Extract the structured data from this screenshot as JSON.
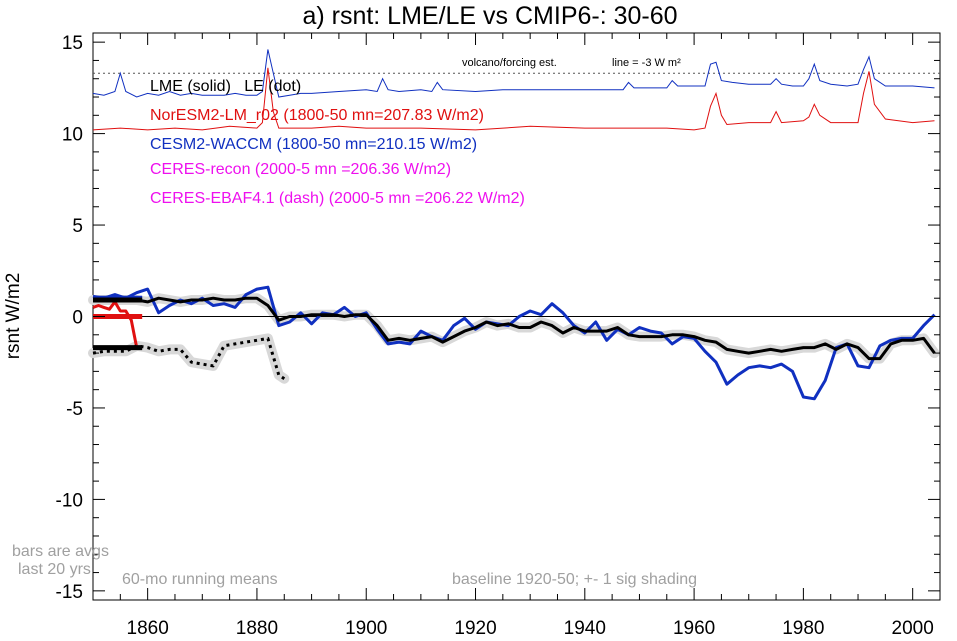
{
  "chart_data": {
    "type": "line",
    "title": "a) rsnt: LME/LE vs CMIP6-: 30-60",
    "ylabel": "rsnt W/m2",
    "xlabel": "",
    "xlim": [
      1850,
      2005
    ],
    "ylim": [
      -15.5,
      15.5
    ],
    "x_ticks": [
      1860,
      1880,
      1900,
      1920,
      1940,
      1960,
      1980,
      2000
    ],
    "y_ticks": [
      -15,
      -10,
      -5,
      0,
      5,
      10,
      15
    ],
    "zero_line": 0,
    "reference_line": {
      "y": 13.3,
      "label_left": "volcano/forcing est.",
      "label_right": "line = -3 W m²"
    },
    "legend_entries": [
      {
        "text": "LME (solid)   LE (dot)",
        "color": "#000000"
      },
      {
        "text": "NorESM2-LM_r02 (1800-50 mn=207.83 W/m2)",
        "color": "#e01010"
      },
      {
        "text": "CESM2-WACCM (1800-50 mn=210.15 W/m2)",
        "color": "#1030c0"
      },
      {
        "text": "CERES-recon (2000-5 mn =206.36 W/m2)",
        "color": "#ee10ee"
      },
      {
        "text": "CERES-EBAF4.1 (dash) (2000-5 mn =206.22 W/m2)",
        "color": "#ee10ee"
      }
    ],
    "annotations": {
      "bars_note_1": "bars are avgs",
      "bars_note_2": "last 20 yrs",
      "running_means": "60-mo running means",
      "baseline": "baseline 1920-50; +- 1 sig shading"
    },
    "series": [
      {
        "name": "LME",
        "color": "#000000",
        "style": "solid",
        "x": [
          1850,
          1852,
          1854,
          1856,
          1858,
          1860,
          1862,
          1864,
          1866,
          1868,
          1870,
          1872,
          1874,
          1876,
          1878,
          1880,
          1882,
          1884,
          1886,
          1888,
          1890,
          1892,
          1894,
          1896,
          1898,
          1900,
          1902,
          1904,
          1906,
          1908,
          1910,
          1912,
          1914,
          1916,
          1918,
          1920,
          1922,
          1924,
          1926,
          1928,
          1930,
          1932,
          1934,
          1936,
          1938,
          1940,
          1942,
          1944,
          1946,
          1948,
          1950,
          1952,
          1954,
          1956,
          1958,
          1960,
          1962,
          1964,
          1966,
          1968,
          1970,
          1972,
          1974,
          1976,
          1978,
          1980,
          1982,
          1984,
          1986,
          1988,
          1990,
          1992,
          1994,
          1996,
          1998,
          2000,
          2002,
          2004
        ],
        "values": [
          0.9,
          0.9,
          0.9,
          0.9,
          0.9,
          0.8,
          1.0,
          0.9,
          0.8,
          0.9,
          0.9,
          1.0,
          0.9,
          0.9,
          1.0,
          1.0,
          0.6,
          -0.2,
          0.0,
          0.0,
          0.1,
          0.1,
          0.1,
          0.0,
          0.1,
          0.1,
          -0.5,
          -1.3,
          -1.2,
          -1.3,
          -1.2,
          -1.1,
          -1.4,
          -1.1,
          -0.8,
          -0.6,
          -0.3,
          -0.5,
          -0.4,
          -0.6,
          -0.6,
          -0.3,
          -0.5,
          -0.9,
          -0.6,
          -0.8,
          -0.8,
          -0.8,
          -0.6,
          -1.0,
          -1.1,
          -1.1,
          -1.1,
          -1.0,
          -1.0,
          -1.1,
          -1.3,
          -1.4,
          -1.8,
          -1.9,
          -2.0,
          -1.9,
          -1.8,
          -1.9,
          -1.8,
          -1.7,
          -1.7,
          -1.5,
          -1.8,
          -1.5,
          -1.7,
          -2.3,
          -2.3,
          -1.5,
          -1.3,
          -1.3,
          -1.2,
          -2.0
        ]
      },
      {
        "name": "CESM2-WACCM",
        "color": "#1030c0",
        "style": "solid",
        "x": [
          1850,
          1852,
          1854,
          1856,
          1858,
          1860,
          1862,
          1864,
          1866,
          1868,
          1870,
          1872,
          1874,
          1876,
          1878,
          1880,
          1882,
          1884,
          1886,
          1888,
          1890,
          1892,
          1894,
          1896,
          1898,
          1900,
          1902,
          1904,
          1906,
          1908,
          1910,
          1912,
          1914,
          1916,
          1918,
          1920,
          1922,
          1924,
          1926,
          1928,
          1930,
          1932,
          1934,
          1936,
          1938,
          1940,
          1942,
          1944,
          1946,
          1948,
          1950,
          1952,
          1954,
          1956,
          1958,
          1960,
          1962,
          1964,
          1966,
          1968,
          1970,
          1972,
          1974,
          1976,
          1978,
          1980,
          1982,
          1984,
          1986,
          1988,
          1990,
          1992,
          1994,
          1996,
          1998,
          2000,
          2002,
          2004
        ],
        "values": [
          1.1,
          1.0,
          1.2,
          1.0,
          1.3,
          1.5,
          0.2,
          0.6,
          0.9,
          0.7,
          1.0,
          0.6,
          0.7,
          0.5,
          1.2,
          1.5,
          1.6,
          -0.5,
          -0.3,
          0.2,
          -0.4,
          0.2,
          0.1,
          0.5,
          0.0,
          0.2,
          -0.7,
          -1.5,
          -1.4,
          -1.5,
          -0.8,
          -1.1,
          -1.3,
          -0.5,
          -0.1,
          -0.7,
          -0.3,
          -0.4,
          -0.5,
          0.0,
          0.3,
          0.1,
          0.7,
          0.2,
          -0.5,
          -0.9,
          -0.3,
          -1.3,
          -0.7,
          -1.0,
          -0.6,
          -0.8,
          -0.9,
          -1.5,
          -1.1,
          -1.2,
          -1.9,
          -2.5,
          -3.7,
          -3.2,
          -2.8,
          -2.7,
          -2.8,
          -2.6,
          -3.0,
          -4.4,
          -4.5,
          -3.5,
          -1.7,
          -1.5,
          -2.7,
          -2.8,
          -1.6,
          -1.3,
          -1.2,
          -1.2,
          -0.5,
          0.1
        ]
      },
      {
        "name": "NorESM2-LM_r02",
        "color": "#e01010",
        "style": "solid",
        "x": [
          1850,
          1851,
          1852,
          1853,
          1854,
          1855,
          1856,
          1857,
          1858
        ],
        "values": [
          0.5,
          0.6,
          0.5,
          0.4,
          0.8,
          0.3,
          0.3,
          -0.2,
          -1.7
        ]
      },
      {
        "name": "LE",
        "color": "#000000",
        "style": "dot",
        "x": [
          1850,
          1852,
          1854,
          1856,
          1858,
          1860,
          1862,
          1864,
          1866,
          1868,
          1870,
          1872,
          1874,
          1876,
          1878,
          1880,
          1882,
          1884,
          1885
        ],
        "values": [
          -2.0,
          -1.9,
          -1.9,
          -1.9,
          -1.6,
          -1.7,
          -1.9,
          -1.8,
          -1.8,
          -2.5,
          -2.6,
          -2.7,
          -1.6,
          -1.5,
          -1.4,
          -1.3,
          -1.2,
          -3.2,
          -3.4
        ]
      }
    ],
    "forcing_series": [
      {
        "name": "CESM2-WACCM forcing",
        "color": "#1030c0",
        "x": [
          1850,
          1852,
          1854,
          1855,
          1856,
          1858,
          1860,
          1862,
          1864,
          1866,
          1868,
          1870,
          1872,
          1874,
          1876,
          1878,
          1880,
          1881,
          1882,
          1883,
          1884,
          1886,
          1888,
          1890,
          1895,
          1900,
          1902,
          1903,
          1904,
          1906,
          1910,
          1912,
          1913,
          1914,
          1920,
          1925,
          1930,
          1940,
          1947,
          1948,
          1949,
          1950,
          1955,
          1956,
          1957,
          1960,
          1962,
          1963,
          1964,
          1965,
          1967,
          1970,
          1974,
          1975,
          1976,
          1978,
          1980,
          1981,
          1982,
          1983,
          1985,
          1988,
          1990,
          1991,
          1992,
          1993,
          1995,
          2000,
          2004
        ],
        "values": [
          12.2,
          12.1,
          12.3,
          13.3,
          12.3,
          12.0,
          12.2,
          12.1,
          12.3,
          12.1,
          12.2,
          12.1,
          12.1,
          12.1,
          12.2,
          12.1,
          12.1,
          12.3,
          14.6,
          13.3,
          12.0,
          12.1,
          12.2,
          12.2,
          12.3,
          12.4,
          12.3,
          13.0,
          12.4,
          12.3,
          12.4,
          12.3,
          12.8,
          12.4,
          12.3,
          12.4,
          12.4,
          12.4,
          12.4,
          12.8,
          12.5,
          12.5,
          12.5,
          12.9,
          12.6,
          12.6,
          12.6,
          13.8,
          13.9,
          12.9,
          12.8,
          12.7,
          12.7,
          13.0,
          12.7,
          12.6,
          12.6,
          13.0,
          13.8,
          12.9,
          12.7,
          12.6,
          12.7,
          13.5,
          14.2,
          13.0,
          12.6,
          12.6,
          12.5
        ]
      },
      {
        "name": "NorESM2-LM_r02 forcing",
        "color": "#e01010",
        "x": [
          1850,
          1855,
          1860,
          1865,
          1870,
          1875,
          1880,
          1881,
          1882,
          1883,
          1884,
          1886,
          1890,
          1895,
          1900,
          1905,
          1910,
          1920,
          1930,
          1940,
          1950,
          1955,
          1960,
          1962,
          1963,
          1964,
          1965,
          1966,
          1970,
          1974,
          1975,
          1976,
          1980,
          1981,
          1982,
          1983,
          1985,
          1990,
          1991,
          1992,
          1993,
          1995,
          2000,
          2004
        ],
        "values": [
          10.2,
          10.3,
          10.2,
          10.3,
          10.2,
          10.4,
          10.3,
          10.6,
          13.6,
          11.2,
          10.3,
          10.3,
          10.3,
          10.4,
          10.3,
          10.3,
          10.3,
          10.2,
          10.4,
          10.3,
          10.3,
          10.3,
          10.2,
          10.3,
          11.5,
          12.2,
          11.0,
          10.5,
          10.6,
          10.6,
          11.2,
          10.6,
          10.7,
          10.9,
          11.6,
          11.0,
          10.6,
          10.6,
          12.2,
          13.4,
          11.6,
          10.8,
          10.6,
          10.7
        ]
      }
    ],
    "bars": [
      {
        "series": "CESM2-WACCM",
        "x_start": 1850,
        "x_end": 1859,
        "value": 1.0,
        "color": "#1030c0"
      },
      {
        "series": "LME",
        "x_start": 1850,
        "x_end": 1859,
        "value": 0.9,
        "color": "#000000"
      },
      {
        "series": "NorESM2-LM_r02",
        "x_start": 1850,
        "x_end": 1859,
        "value": 0.0,
        "color": "#e01010"
      },
      {
        "series": "LE",
        "x_start": 1850,
        "x_end": 1859,
        "value": -1.7,
        "color": "#000000"
      }
    ]
  }
}
